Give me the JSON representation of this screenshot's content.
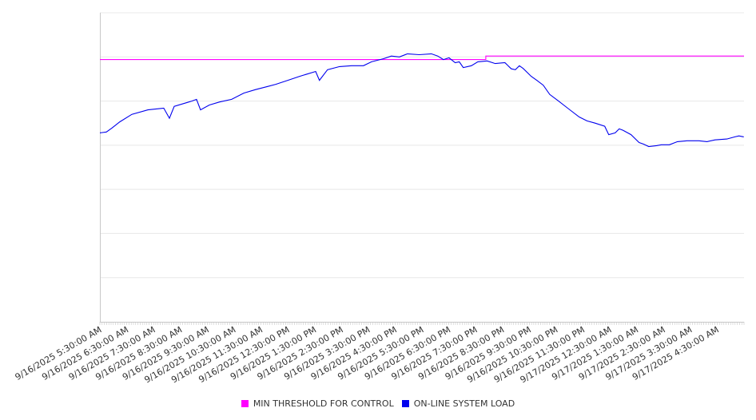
{
  "chart_data": {
    "type": "line",
    "title": "",
    "xlabel": "",
    "ylabel": "",
    "x_unit": "hours since 9/16/2025 5:30:00 AM",
    "xlim": [
      0,
      24
    ],
    "ylim": [
      0,
      7
    ],
    "y_tick_labels_shown": false,
    "grid": true,
    "legend_position": "bottom",
    "x_tick_labels": [
      "9/16/2025 5:30:00 AM",
      "9/16/2025 6:30:00 AM",
      "9/16/2025 7:30:00 AM",
      "9/16/2025 8:30:00 AM",
      "9/16/2025 9:30:00 AM",
      "9/16/2025 10:30:00 AM",
      "9/16/2025 11:30:00 AM",
      "9/16/2025 12:30:00 PM",
      "9/16/2025 1:30:00 PM",
      "9/16/2025 2:30:00 PM",
      "9/16/2025 3:30:00 PM",
      "9/16/2025 4:30:00 PM",
      "9/16/2025 5:30:00 PM",
      "9/16/2025 6:30:00 PM",
      "9/16/2025 7:30:00 PM",
      "9/16/2025 8:30:00 PM",
      "9/16/2025 9:30:00 PM",
      "9/16/2025 10:30:00 PM",
      "9/16/2025 11:30:00 PM",
      "9/17/2025 12:30:00 AM",
      "9/17/2025 1:30:00 AM",
      "9/17/2025 2:30:00 AM",
      "9/17/2025 3:30:00 AM",
      "9/17/2025 4:30:00 AM"
    ],
    "series": [
      {
        "name": "MIN THRESHOLD FOR CONTROL",
        "color": "#ff00ff",
        "step": true,
        "x": [
          0,
          14.38,
          14.38,
          24
        ],
        "y": [
          5.94,
          5.94,
          6.02,
          6.02
        ]
      },
      {
        "name": "ON-LINE SYSTEM LOAD",
        "color": "#0000ee",
        "x": [
          0,
          0.24,
          0.45,
          0.74,
          1.19,
          1.79,
          2.38,
          2.59,
          2.77,
          3.27,
          3.42,
          3.6,
          3.75,
          4.08,
          4.46,
          4.91,
          5.36,
          5.8,
          6.25,
          6.55,
          7.0,
          7.44,
          8.04,
          8.18,
          8.48,
          8.93,
          9.38,
          9.82,
          10.12,
          10.57,
          10.86,
          11.16,
          11.46,
          11.9,
          12.35,
          12.59,
          12.8,
          13.01,
          13.24,
          13.39,
          13.54,
          13.84,
          14.08,
          14.43,
          14.73,
          15.09,
          15.33,
          15.48,
          15.63,
          15.77,
          16.07,
          16.28,
          16.52,
          16.76,
          17.11,
          17.47,
          17.86,
          18.15,
          18.45,
          18.81,
          18.96,
          19.2,
          19.35,
          19.49,
          19.79,
          20.09,
          20.24,
          20.45,
          20.74,
          20.92,
          21.22,
          21.52,
          21.88,
          22.32,
          22.62,
          22.92,
          23.36,
          23.66,
          23.81,
          23.99
        ],
        "y": [
          4.28,
          4.3,
          4.39,
          4.53,
          4.7,
          4.8,
          4.84,
          4.61,
          4.88,
          4.97,
          5.0,
          5.04,
          4.8,
          4.91,
          4.98,
          5.04,
          5.18,
          5.26,
          5.33,
          5.38,
          5.47,
          5.56,
          5.67,
          5.47,
          5.71,
          5.78,
          5.8,
          5.8,
          5.89,
          5.96,
          6.02,
          6.0,
          6.07,
          6.05,
          6.07,
          6.02,
          5.94,
          5.98,
          5.87,
          5.89,
          5.76,
          5.8,
          5.89,
          5.91,
          5.85,
          5.87,
          5.73,
          5.71,
          5.8,
          5.74,
          5.56,
          5.47,
          5.36,
          5.15,
          4.99,
          4.82,
          4.64,
          4.55,
          4.5,
          4.43,
          4.24,
          4.28,
          4.37,
          4.34,
          4.24,
          4.06,
          4.03,
          3.97,
          3.99,
          4.01,
          4.01,
          4.08,
          4.1,
          4.1,
          4.08,
          4.12,
          4.14,
          4.19,
          4.21,
          4.19
        ]
      }
    ]
  }
}
